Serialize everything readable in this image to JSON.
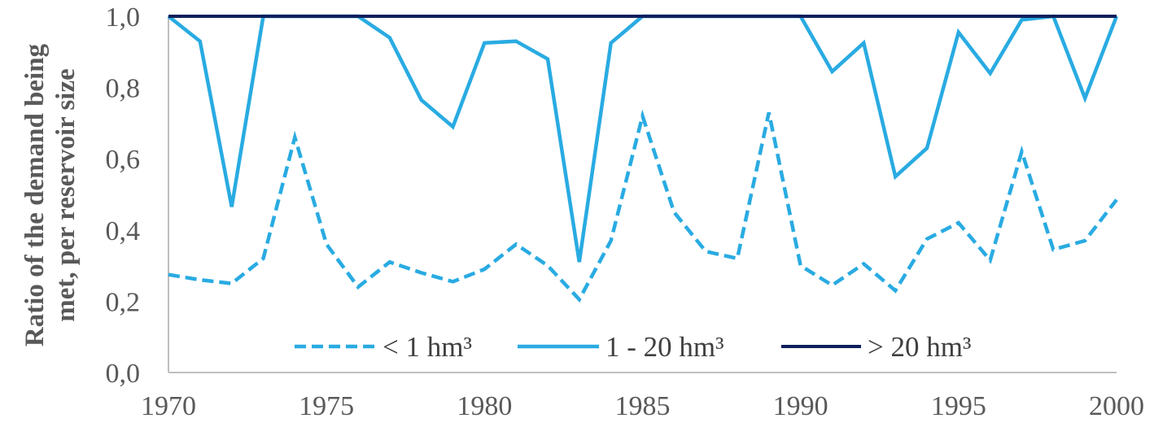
{
  "chart_data": {
    "type": "line",
    "ylabel": [
      "Ratio of the demand being",
      "met, per reservoir size"
    ],
    "xlabel": "",
    "xlim": [
      1970,
      2000
    ],
    "ylim": [
      0,
      1
    ],
    "x_ticks": [
      "1970",
      "1975",
      "1980",
      "1985",
      "1990",
      "1995",
      "2000"
    ],
    "y_ticks": [
      "0,0",
      "0,2",
      "0,4",
      "0,6",
      "0,8",
      "1,0"
    ],
    "grid": false,
    "legend_position": "bottom-inside",
    "x": [
      1970,
      1971,
      1972,
      1973,
      1974,
      1975,
      1976,
      1977,
      1978,
      1979,
      1980,
      1981,
      1982,
      1983,
      1984,
      1985,
      1986,
      1987,
      1988,
      1989,
      1990,
      1991,
      1992,
      1993,
      1994,
      1995,
      1996,
      1997,
      1998,
      1999,
      2000
    ],
    "series": [
      {
        "name": "< 1 hm³",
        "style": "dashed",
        "color": "#29abe2",
        "values": [
          0.275,
          0.26,
          0.25,
          0.32,
          0.66,
          0.36,
          0.24,
          0.31,
          0.28,
          0.255,
          0.29,
          0.36,
          0.3,
          0.205,
          0.37,
          0.72,
          0.45,
          0.34,
          0.32,
          0.73,
          0.3,
          0.245,
          0.305,
          0.23,
          0.375,
          0.42,
          0.315,
          0.62,
          0.345,
          0.37,
          0.485
        ]
      },
      {
        "name": "1 - 20 hm³",
        "style": "solid",
        "color": "#29abe2",
        "values": [
          1.0,
          0.93,
          0.465,
          1.0,
          1.0,
          1.0,
          1.0,
          0.94,
          0.765,
          0.69,
          0.925,
          0.93,
          0.88,
          0.31,
          0.925,
          1.0,
          1.0,
          1.0,
          1.0,
          1.0,
          1.0,
          0.845,
          0.925,
          0.55,
          0.63,
          0.955,
          0.84,
          0.99,
          1.0,
          0.77,
          1.0
        ]
      },
      {
        "name": "> 20 hm³",
        "style": "solid",
        "color": "#0d1f5c",
        "values": [
          1.0,
          1.0,
          1.0,
          1.0,
          1.0,
          1.0,
          1.0,
          1.0,
          1.0,
          1.0,
          1.0,
          1.0,
          1.0,
          1.0,
          1.0,
          1.0,
          1.0,
          1.0,
          1.0,
          1.0,
          1.0,
          1.0,
          1.0,
          1.0,
          1.0,
          1.0,
          1.0,
          1.0,
          1.0,
          1.0,
          1.0
        ]
      }
    ]
  }
}
